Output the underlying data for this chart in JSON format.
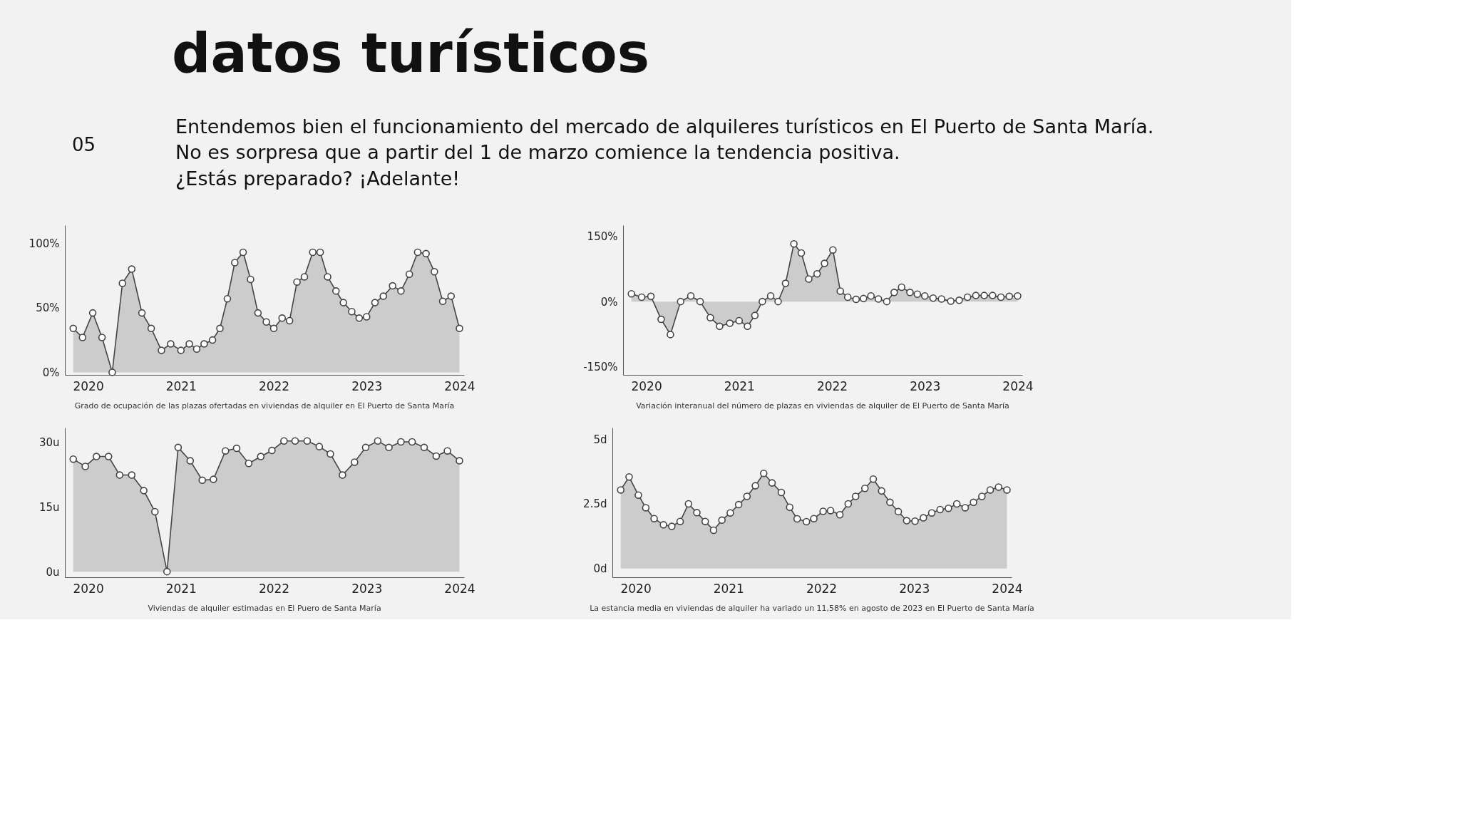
{
  "chart_data": [
    {
      "type": "other",
      "title": "datos turísticos",
      "subtitle": "Entendemos bien el funcionamiento del mercado de alquileres turísticos en El Puerto de Santa María.\nNo es sorpresa que a partir del 1 de marzo comience la tendencia positiva.\n¿Estás preparado? ¡Adelante!",
      "annotations": [
        "05"
      ]
    },
    {
      "type": "area",
      "marker": "circle",
      "xlim": [
        2019.75,
        2024.05
      ],
      "xticks": [
        2020,
        2021,
        2022,
        2023,
        2024
      ],
      "ylim": [
        -2,
        114
      ],
      "yticks": [
        {
          "value": 0,
          "label": "0%"
        },
        {
          "value": 50,
          "label": "50%"
        },
        {
          "value": 100,
          "label": "100%"
        }
      ],
      "annotations": [
        "Grado de ocupación de las plazas ofertadas en viviendas de alquiler en El Puerto de Santa María"
      ],
      "series": [
        {
          "color": "#444444",
          "x": [
            2019.84,
            2019.94,
            2020.05,
            2020.15,
            2020.26,
            2020.37,
            2020.47,
            2020.58,
            2020.68,
            2020.79,
            2020.89,
            2021.0,
            2021.09,
            2021.17,
            2021.25,
            2021.34,
            2021.42,
            2021.5,
            2021.58,
            2021.67,
            2021.75,
            2021.83,
            2021.92,
            2022.0,
            2022.09,
            2022.17,
            2022.25,
            2022.33,
            2022.42,
            2022.5,
            2022.58,
            2022.67,
            2022.75,
            2022.84,
            2022.92,
            2023.0,
            2023.09,
            2023.18,
            2023.28,
            2023.37,
            2023.46,
            2023.55,
            2023.64,
            2023.73,
            2023.82,
            2023.91,
            2024.0
          ],
          "values": [
            34,
            27,
            46,
            27,
            0,
            69,
            80,
            46,
            34,
            17,
            22,
            17,
            22,
            18,
            22,
            25,
            34,
            57,
            85,
            93,
            72,
            46,
            39,
            34,
            42,
            40,
            70,
            74,
            93,
            93,
            74,
            63,
            54,
            47,
            42,
            43,
            54,
            59,
            67,
            63,
            76,
            93,
            92,
            78,
            55,
            59,
            34
          ]
        }
      ]
    },
    {
      "type": "area",
      "marker": "circle",
      "xlim": [
        2019.75,
        2024.05
      ],
      "xticks": [
        2020,
        2021,
        2022,
        2023,
        2024
      ],
      "ylim": [
        -169,
        176
      ],
      "yticks": [
        {
          "value": -150,
          "label": "-150%"
        },
        {
          "value": 0,
          "label": "0%"
        },
        {
          "value": 150,
          "label": "150%"
        }
      ],
      "annotations": [
        "Variación interanual del número de plazas en viviendas de alquiler de El Puerto de Santa María"
      ],
      "series": [
        {
          "color": "#444444",
          "x": [
            2019.84,
            2019.95,
            2020.05,
            2020.16,
            2020.26,
            2020.37,
            2020.48,
            2020.58,
            2020.69,
            2020.79,
            2020.9,
            2021.0,
            2021.09,
            2021.17,
            2021.25,
            2021.34,
            2021.42,
            2021.5,
            2021.59,
            2021.67,
            2021.75,
            2021.84,
            2021.92,
            2022.01,
            2022.09,
            2022.17,
            2022.26,
            2022.34,
            2022.42,
            2022.5,
            2022.59,
            2022.67,
            2022.75,
            2022.84,
            2022.92,
            2023.0,
            2023.09,
            2023.18,
            2023.28,
            2023.37,
            2023.46,
            2023.55,
            2023.64,
            2023.73,
            2023.82,
            2023.91,
            2024.0
          ],
          "values": [
            18,
            10,
            12,
            -41,
            -76,
            0,
            13,
            0,
            -37,
            -57,
            -50,
            -44,
            -57,
            -32,
            0,
            13,
            0,
            42,
            133,
            112,
            52,
            64,
            88,
            119,
            24,
            10,
            5,
            7,
            13,
            6,
            0,
            21,
            33,
            21,
            17,
            13,
            8,
            6,
            1,
            3,
            10,
            14,
            14,
            14,
            10,
            12,
            13
          ]
        }
      ]
    },
    {
      "type": "area",
      "marker": "circle",
      "xlim": [
        2019.75,
        2024.05
      ],
      "xticks": [
        2020,
        2021,
        2022,
        2023,
        2024
      ],
      "ylim": [
        -1.3,
        33.4
      ],
      "yticks": [
        {
          "value": 0,
          "label": "0u"
        },
        {
          "value": 15,
          "label": "15u"
        },
        {
          "value": 30,
          "label": "30u"
        }
      ],
      "annotations": [
        "Viviendas de alquiler estimadas en El Puero de Santa María"
      ],
      "series": [
        {
          "color": "#444444",
          "x": [
            2019.84,
            2019.97,
            2020.09,
            2020.22,
            2020.34,
            2020.47,
            2020.6,
            2020.72,
            2020.85,
            2020.97,
            2021.1,
            2021.23,
            2021.35,
            2021.48,
            2021.6,
            2021.73,
            2021.86,
            2021.98,
            2022.11,
            2022.23,
            2022.36,
            2022.49,
            2022.61,
            2022.74,
            2022.87,
            2022.99,
            2023.12,
            2023.24,
            2023.37,
            2023.49,
            2023.62,
            2023.75,
            2023.87,
            2024.0
          ],
          "values": [
            26.1,
            24.4,
            26.7,
            26.7,
            22.4,
            22.4,
            18.8,
            13.9,
            0,
            28.8,
            25.7,
            21.2,
            21.4,
            28.0,
            28.6,
            25.1,
            26.7,
            28.1,
            30.3,
            30.3,
            30.3,
            29.0,
            27.3,
            22.4,
            25.4,
            28.8,
            30.3,
            28.8,
            30.1,
            30.1,
            28.8,
            26.8,
            28.0,
            25.7
          ]
        }
      ]
    },
    {
      "type": "area",
      "marker": "circle",
      "xlim": [
        2019.75,
        2024.05
      ],
      "xticks": [
        2020,
        2021,
        2022,
        2023,
        2024
      ],
      "ylim": [
        -0.34,
        5.45
      ],
      "yticks": [
        {
          "value": 0,
          "label": "0d"
        },
        {
          "value": 2.5,
          "label": "2.5d"
        },
        {
          "value": 5,
          "label": "5d"
        }
      ],
      "annotations": [
        "La estancia media en viviendas de alquiler ha variado un 11,58% en agosto de 2023 en El Puerto de Santa María"
      ],
      "series": [
        {
          "color": "#444444",
          "x": [
            2019.84,
            2019.93,
            2020.03,
            2020.11,
            2020.2,
            2020.3,
            2020.39,
            2020.48,
            2020.57,
            2020.66,
            2020.75,
            2020.84,
            2020.93,
            2021.02,
            2021.11,
            2021.2,
            2021.29,
            2021.38,
            2021.47,
            2021.57,
            2021.66,
            2021.74,
            2021.84,
            2021.92,
            2022.02,
            2022.1,
            2022.2,
            2022.29,
            2022.37,
            2022.47,
            2022.56,
            2022.65,
            2022.74,
            2022.83,
            2022.92,
            2023.01,
            2023.1,
            2023.19,
            2023.28,
            2023.37,
            2023.46,
            2023.55,
            2023.64,
            2023.73,
            2023.82,
            2023.91,
            2024.0
          ],
          "values": [
            3.04,
            3.54,
            2.84,
            2.35,
            1.93,
            1.69,
            1.63,
            1.82,
            2.5,
            2.16,
            1.82,
            1.48,
            1.87,
            2.15,
            2.47,
            2.79,
            3.2,
            3.68,
            3.31,
            2.94,
            2.37,
            1.92,
            1.81,
            1.93,
            2.21,
            2.24,
            2.08,
            2.5,
            2.79,
            3.1,
            3.46,
            3.0,
            2.56,
            2.2,
            1.85,
            1.83,
            1.96,
            2.15,
            2.28,
            2.33,
            2.5,
            2.35,
            2.56,
            2.79,
            3.04,
            3.15,
            3.04
          ]
        }
      ]
    }
  ]
}
